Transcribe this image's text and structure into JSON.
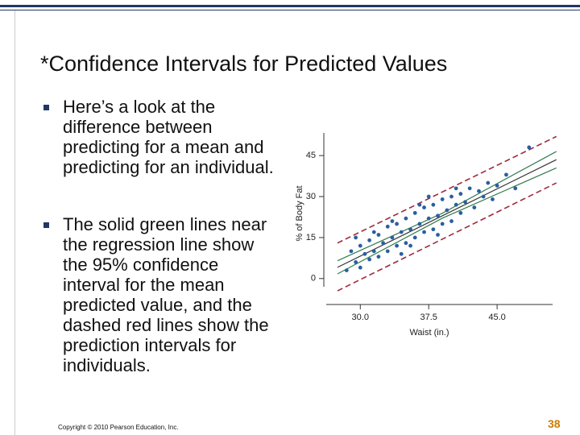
{
  "header": {
    "title": "*Confidence Intervals for Predicted Values"
  },
  "bullets": [
    "Here’s a look at the difference between predicting for a mean and predicting for an individual.",
    "The solid green lines near the regression line show the 95% confidence interval for the mean predicted value, and the dashed red lines show the prediction intervals for individuals."
  ],
  "chart_data": {
    "type": "scatter",
    "x_label": "Waist (in.)",
    "y_label": "% of Body Fat",
    "color": "#2a5fa0",
    "x": [
      28.5,
      29,
      29.5,
      30,
      30,
      30.5,
      31,
      31,
      31.5,
      32,
      32,
      32.5,
      33,
      33,
      33.5,
      34,
      34,
      34.5,
      35,
      35,
      35.5,
      36,
      36,
      36.5,
      37,
      37,
      37.5,
      38,
      38,
      38.5,
      39,
      39,
      39.5,
      40,
      40,
      40.5,
      41,
      41,
      41.5,
      42,
      42.5,
      43,
      43.5,
      44,
      44.5,
      45,
      46,
      47,
      48.5,
      33.5,
      35.5,
      36.5,
      38.5,
      34.5,
      37.5,
      31.5,
      29.5,
      40.5
    ],
    "y": [
      3,
      10,
      6,
      12,
      4,
      9,
      14,
      7,
      10,
      16,
      8,
      13,
      19,
      10,
      15,
      20,
      12,
      17,
      22,
      13,
      18,
      24,
      15,
      20,
      26,
      17,
      22,
      27,
      18,
      23,
      29,
      20,
      25,
      30,
      21,
      27,
      31,
      24,
      28,
      33,
      26,
      32,
      30,
      35,
      29,
      34,
      38,
      33,
      48,
      21,
      12,
      27,
      16,
      9,
      30,
      17,
      15,
      33
    ],
    "xlim": [
      24.5,
      51.5
    ],
    "ylim": [
      -9.5,
      53
    ],
    "xticks": [
      {
        "value": 30,
        "label": "30.0"
      },
      37.5,
      {
        "value": 45,
        "label": "45.0"
      }
    ],
    "yticks": [
      0,
      15,
      30,
      45
    ],
    "lines": [
      {
        "color": "#333333",
        "style": "solid",
        "x": [
          27.5,
          51.5
        ],
        "y": [
          4.1,
          43.5
        ]
      },
      {
        "color": "#2e7d4f",
        "style": "solid",
        "x": [
          27.5,
          39,
          51.5
        ],
        "y": [
          6.5,
          23.9,
          46.5
        ]
      },
      {
        "color": "#2e7d4f",
        "style": "solid",
        "x": [
          27.5,
          39,
          51.5
        ],
        "y": [
          1.7,
          22.1,
          40.5
        ]
      },
      {
        "color": "#a0283c",
        "style": "dashed",
        "x": [
          27.5,
          51.5
        ],
        "y": [
          13,
          52
        ]
      },
      {
        "color": "#a0283c",
        "style": "dashed",
        "x": [
          27.5,
          51.5
        ],
        "y": [
          -4.5,
          35
        ]
      }
    ]
  },
  "footer": {
    "copyright": "Copyright © 2010 Pearson Education, Inc.",
    "page_number": "38"
  }
}
